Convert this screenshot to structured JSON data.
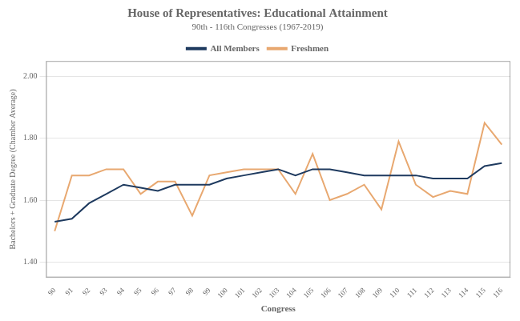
{
  "chart_data": {
    "type": "line",
    "title": "House of Representatives: Educational Attainment",
    "subtitle": "90th - 116th Congresses (1967-2019)",
    "x_label": "Congress",
    "y_label": "Bachelors + Graduate Degree (Chamber Average)",
    "x": [
      90,
      91,
      92,
      93,
      94,
      95,
      96,
      97,
      98,
      99,
      100,
      101,
      102,
      103,
      104,
      105,
      106,
      107,
      108,
      109,
      110,
      111,
      112,
      113,
      114,
      115,
      116
    ],
    "series": [
      {
        "name": "All Members",
        "color": "#1e3a5f",
        "values": [
          1.53,
          1.54,
          1.59,
          1.62,
          1.65,
          1.64,
          1.63,
          1.65,
          1.65,
          1.65,
          1.67,
          1.68,
          1.69,
          1.7,
          1.68,
          1.7,
          1.7,
          1.69,
          1.68,
          1.68,
          1.68,
          1.68,
          1.67,
          1.67,
          1.67,
          1.71,
          1.72
        ]
      },
      {
        "name": "Freshmen",
        "color": "#e8a870",
        "values": [
          1.5,
          1.68,
          1.68,
          1.7,
          1.7,
          1.62,
          1.66,
          1.66,
          1.55,
          1.68,
          1.69,
          1.7,
          1.7,
          1.7,
          1.62,
          1.75,
          1.6,
          1.62,
          1.65,
          1.57,
          1.79,
          1.65,
          1.61,
          1.63,
          1.62,
          1.85,
          1.78
        ]
      }
    ],
    "xlim": [
      89.5,
      116.5
    ],
    "xticks": [
      90,
      91,
      92,
      93,
      94,
      95,
      96,
      97,
      98,
      99,
      100,
      101,
      102,
      103,
      104,
      105,
      106,
      107,
      108,
      109,
      110,
      111,
      112,
      113,
      114,
      115,
      116
    ],
    "ylim": [
      1.35,
      2.05
    ],
    "yticks": [
      {
        "value": 1.4,
        "label": "1.40"
      },
      {
        "value": 1.6,
        "label": "1.60"
      },
      {
        "value": 1.8,
        "label": "1.80"
      },
      {
        "value": 2.0,
        "label": "2.00"
      }
    ],
    "grid": "y",
    "legend": "top"
  }
}
